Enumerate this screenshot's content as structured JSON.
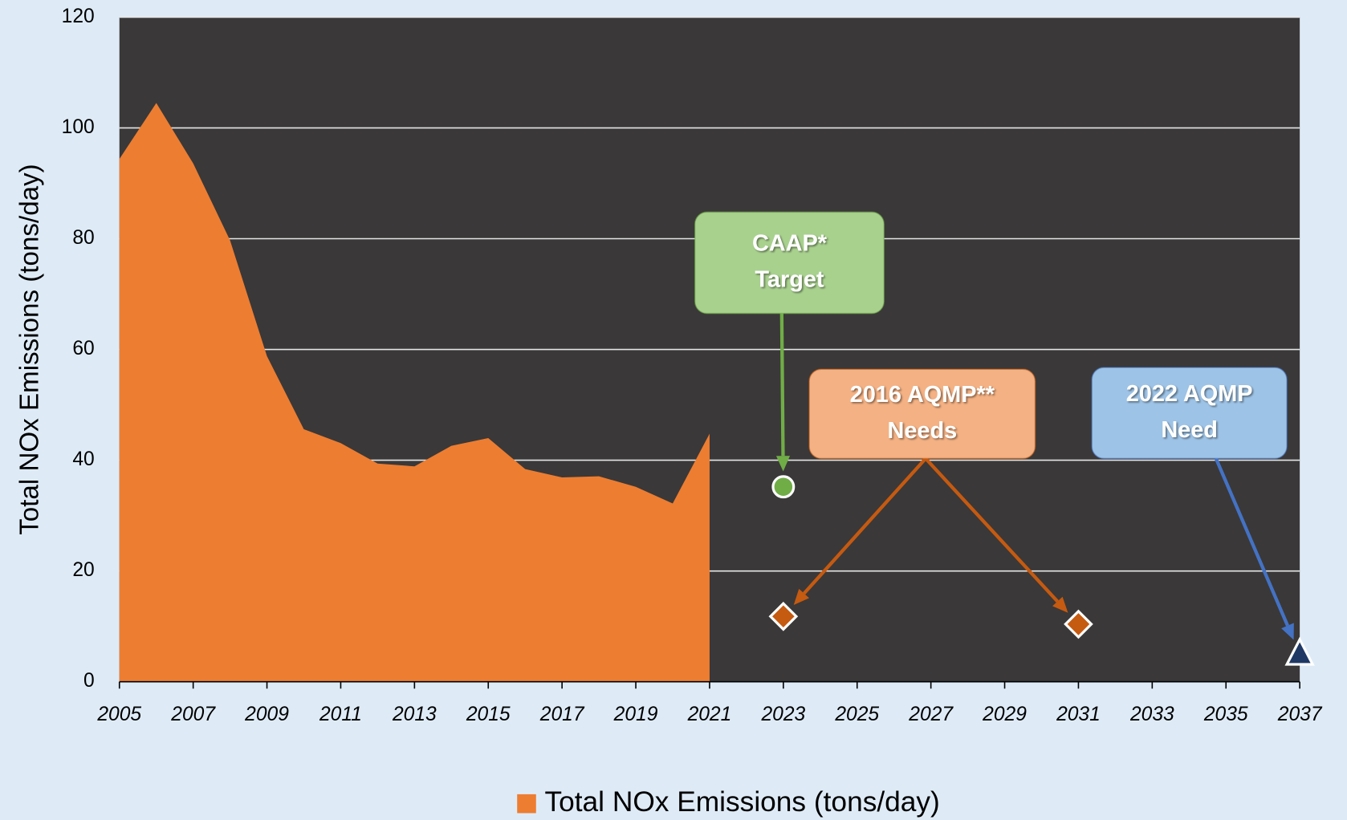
{
  "chart_data": {
    "type": "area",
    "y_label": "Total NOx Emissions (tons/day)",
    "x": [
      2005,
      2006,
      2007,
      2008,
      2009,
      2010,
      2011,
      2012,
      2013,
      2014,
      2015,
      2016,
      2017,
      2018,
      2019,
      2020,
      2021
    ],
    "series": [
      {
        "name": "Total NOx Emissions (tons/day)",
        "color": "#ed7d31",
        "values": [
          94.4,
          104.5,
          93.6,
          79.7,
          58.8,
          45.6,
          43.1,
          39.4,
          38.9,
          42.6,
          44.0,
          38.4,
          36.9,
          37.1,
          35.2,
          32.2,
          44.8
        ]
      }
    ],
    "markers": [
      {
        "label": [
          "CAAP*",
          "Target"
        ],
        "shape": "circle",
        "color": "#70ad47",
        "box_color": "#a9d18e",
        "arrow_color": "#70ad47",
        "x": [
          2023
        ],
        "values": [
          35.2
        ]
      },
      {
        "label": [
          "2016 AQMP**",
          "Needs"
        ],
        "shape": "diamond",
        "color": "#c55a11",
        "box_color": "#f4b183",
        "arrow_color": "#c55a11",
        "x": [
          2023,
          2031
        ],
        "values": [
          11.8,
          10.4
        ]
      },
      {
        "label": [
          "2022 AQMP",
          "Need"
        ],
        "shape": "triangle",
        "color": "#1f3864",
        "box_color": "#9dc3e6",
        "arrow_color": "#4472c4",
        "x": [
          2037
        ],
        "values": [
          5.0
        ]
      }
    ],
    "xlim": [
      2005,
      2037
    ],
    "xticks": [
      2005,
      2007,
      2009,
      2011,
      2013,
      2015,
      2017,
      2019,
      2021,
      2023,
      2025,
      2027,
      2029,
      2031,
      2033,
      2035,
      2037
    ],
    "ylim": [
      0,
      120
    ],
    "yticks": [
      0,
      20,
      40,
      60,
      80,
      100,
      120
    ],
    "grid": true,
    "legend": "bottom"
  }
}
